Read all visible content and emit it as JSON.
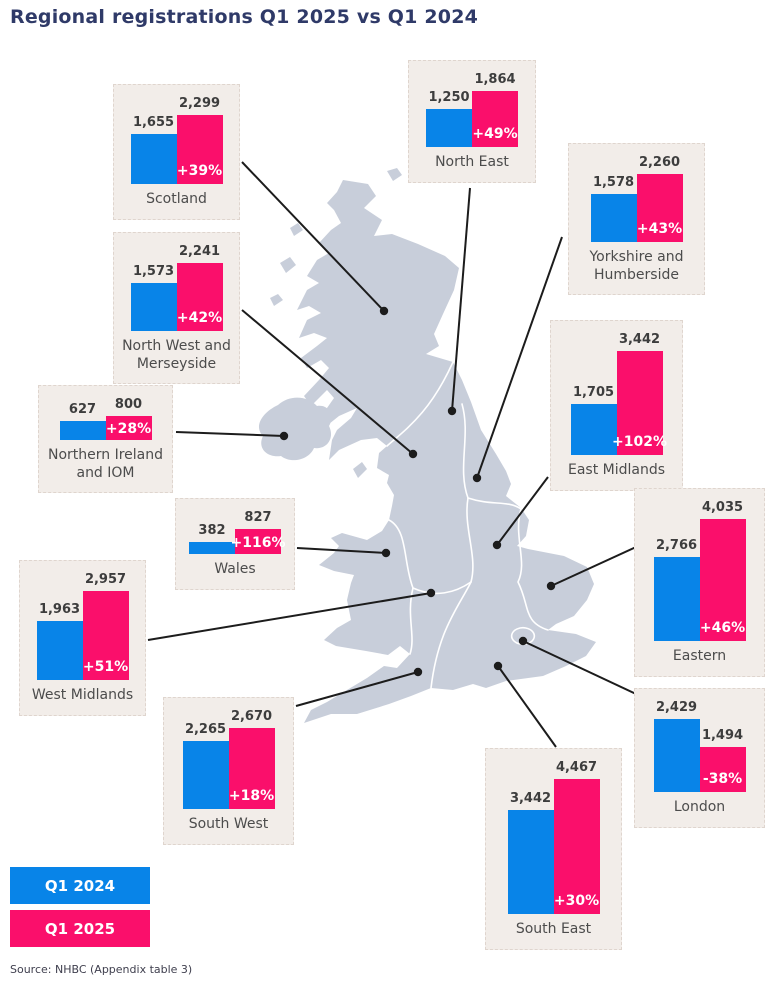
{
  "title": "Regional registrations Q1 2025 vs Q1 2024",
  "source": "Source: NHBC (Appendix table 3)",
  "legend": {
    "q1_2024_label": "Q1 2024",
    "q1_2025_label": "Q1 2025"
  },
  "colors": {
    "q1_2024_blue": "#0884E8",
    "q1_2025_pink": "#FA0F6B",
    "card_background": "#F2EDE9",
    "map_fill": "#C8CEDA",
    "title_navy": "#2F3A68",
    "leader_line": "#1C1C1C"
  },
  "chart_data": {
    "type": "bar",
    "title": "Regional registrations Q1 2025 vs Q1 2024",
    "series_names": [
      "Q1 2024",
      "Q1 2025"
    ],
    "legend_position": "bottom-left",
    "note": "Each region card shows Q1 2024 (blue) vs Q1 2025 (pink) registrations with % change inside the pink bar",
    "regions": [
      {
        "name": "Scotland",
        "values": [
          1655,
          2299
        ],
        "display": [
          "1,655",
          "2,299"
        ],
        "change": "+39%"
      },
      {
        "name": "North East",
        "values": [
          1250,
          1864
        ],
        "display": [
          "1,250",
          "1,864"
        ],
        "change": "+49%"
      },
      {
        "name": "Yorkshire and Humberside",
        "values": [
          1578,
          2260
        ],
        "display": [
          "1,578",
          "2,260"
        ],
        "change": "+43%"
      },
      {
        "name": "North West and Merseyside",
        "values": [
          1573,
          2241
        ],
        "display": [
          "1,573",
          "2,241"
        ],
        "change": "+42%"
      },
      {
        "name": "Northern Ireland and IOM",
        "values": [
          627,
          800
        ],
        "display": [
          "627",
          "800"
        ],
        "change": "+28%"
      },
      {
        "name": "East Midlands",
        "values": [
          1705,
          3442
        ],
        "display": [
          "1,705",
          "3,442"
        ],
        "change": "+102%"
      },
      {
        "name": "Wales",
        "values": [
          382,
          827
        ],
        "display": [
          "382",
          "827"
        ],
        "change": "+116%"
      },
      {
        "name": "Eastern",
        "values": [
          2766,
          4035
        ],
        "display": [
          "2,766",
          "4,035"
        ],
        "change": "+46%"
      },
      {
        "name": "West Midlands",
        "values": [
          1963,
          2957
        ],
        "display": [
          "1,963",
          "2,957"
        ],
        "change": "+51%"
      },
      {
        "name": "South West",
        "values": [
          2265,
          2670
        ],
        "display": [
          "2,265",
          "2,670"
        ],
        "change": "+18%"
      },
      {
        "name": "London",
        "values": [
          2429,
          1494
        ],
        "display": [
          "2,429",
          "1,494"
        ],
        "change": "-38%"
      },
      {
        "name": "South East",
        "values": [
          3442,
          4467
        ],
        "display": [
          "3,442",
          "4,467"
        ],
        "change": "+30%"
      }
    ]
  }
}
